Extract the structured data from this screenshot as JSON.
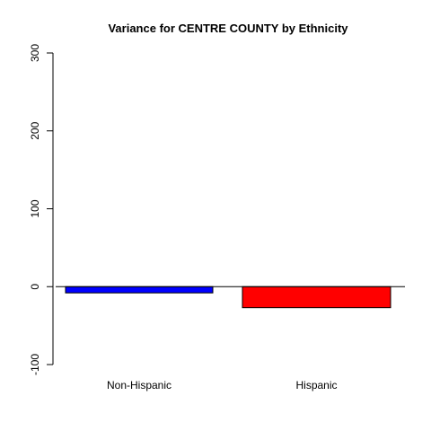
{
  "chart_data": {
    "type": "bar",
    "title": "Variance for CENTRE COUNTY by Ethnicity",
    "xlabel": "",
    "ylabel": "",
    "categories": [
      "Non-Hispanic",
      "Hispanic"
    ],
    "values": [
      -8,
      -27
    ],
    "colors": [
      "#0000ff",
      "#ff0000"
    ],
    "ylim": [
      -100,
      300
    ],
    "yticks": [
      -100,
      0,
      100,
      200,
      300
    ],
    "ytick_labels": [
      "-100",
      "0",
      "100",
      "200",
      "300"
    ],
    "baseline": 0,
    "grid": false,
    "legend": "none"
  }
}
